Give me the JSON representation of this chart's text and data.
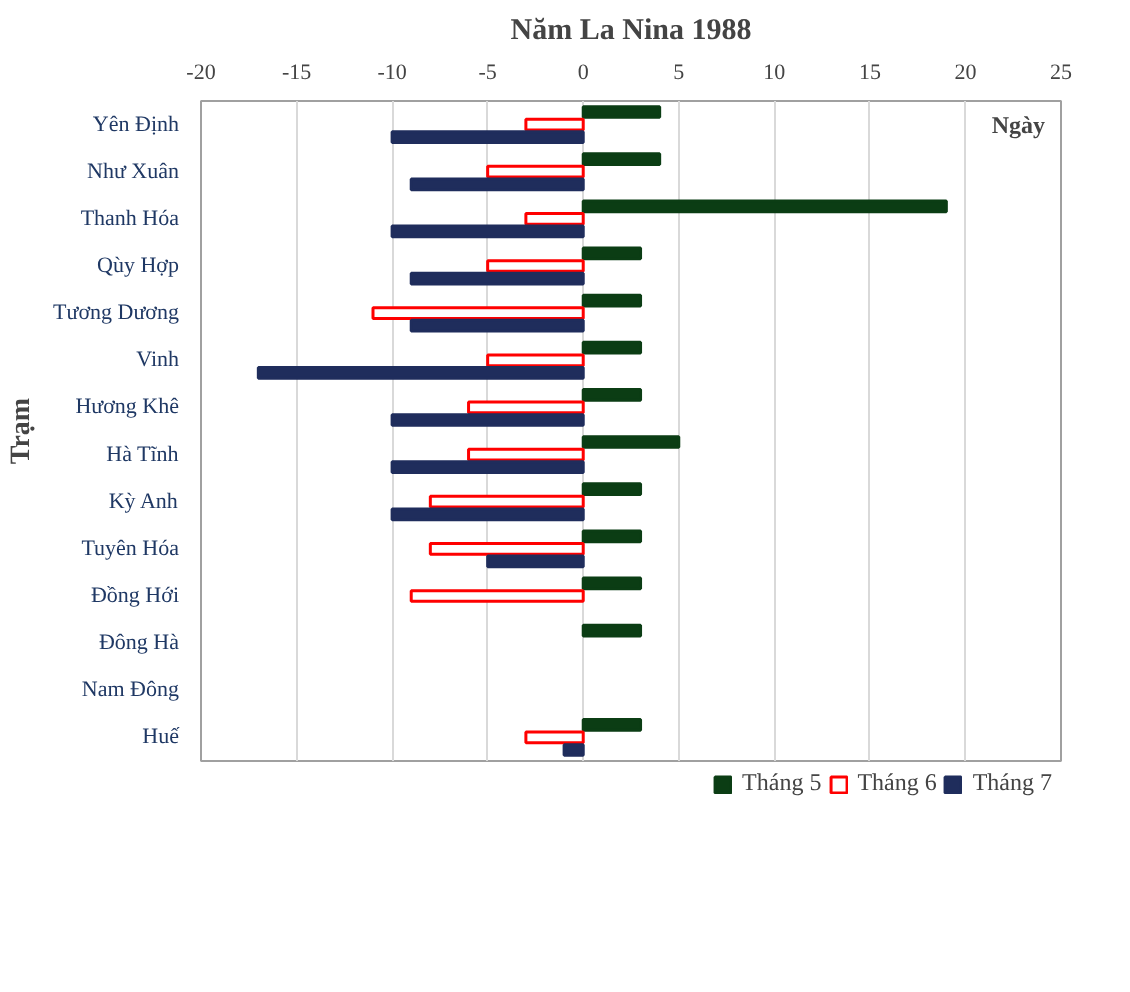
{
  "chart_data": {
    "type": "bar",
    "orientation": "horizontal",
    "title": "Năm La Nina 1988",
    "ylabel": "Trạm",
    "annotations": [
      "Ngày"
    ],
    "categories": [
      "Yên Định",
      "Như Xuân",
      "Thanh Hóa",
      "Qùy Hợp",
      "Tương Dương",
      "Vinh",
      "Hương Khê",
      "Hà Tĩnh",
      "Kỳ Anh",
      "Tuyên Hóa",
      "Đồng Hới",
      "Đông Hà",
      "Nam Đông",
      "Huế"
    ],
    "series": [
      {
        "name": "Tháng 5",
        "color": "#0b3d14",
        "values": [
          4,
          4,
          19,
          3,
          3,
          3,
          3,
          5,
          3,
          3,
          3,
          3,
          null,
          3
        ]
      },
      {
        "name": "Tháng 6",
        "color": "#ff0000",
        "values": [
          -3,
          -5,
          -3,
          -5,
          -11,
          -5,
          -6,
          -6,
          -8,
          -8,
          -9,
          null,
          null,
          -3
        ]
      },
      {
        "name": "Tháng 7",
        "color": "#1f2d5c",
        "values": [
          -10,
          -9,
          -10,
          -9,
          -9,
          -17,
          -10,
          -10,
          -10,
          -5,
          null,
          null,
          null,
          -1
        ]
      }
    ],
    "xlim": [
      -20,
      25
    ],
    "xticks": [
      -20,
      -15,
      -10,
      -5,
      0,
      5,
      10,
      15,
      20,
      25
    ],
    "grid": "x",
    "legend": "bottom"
  }
}
